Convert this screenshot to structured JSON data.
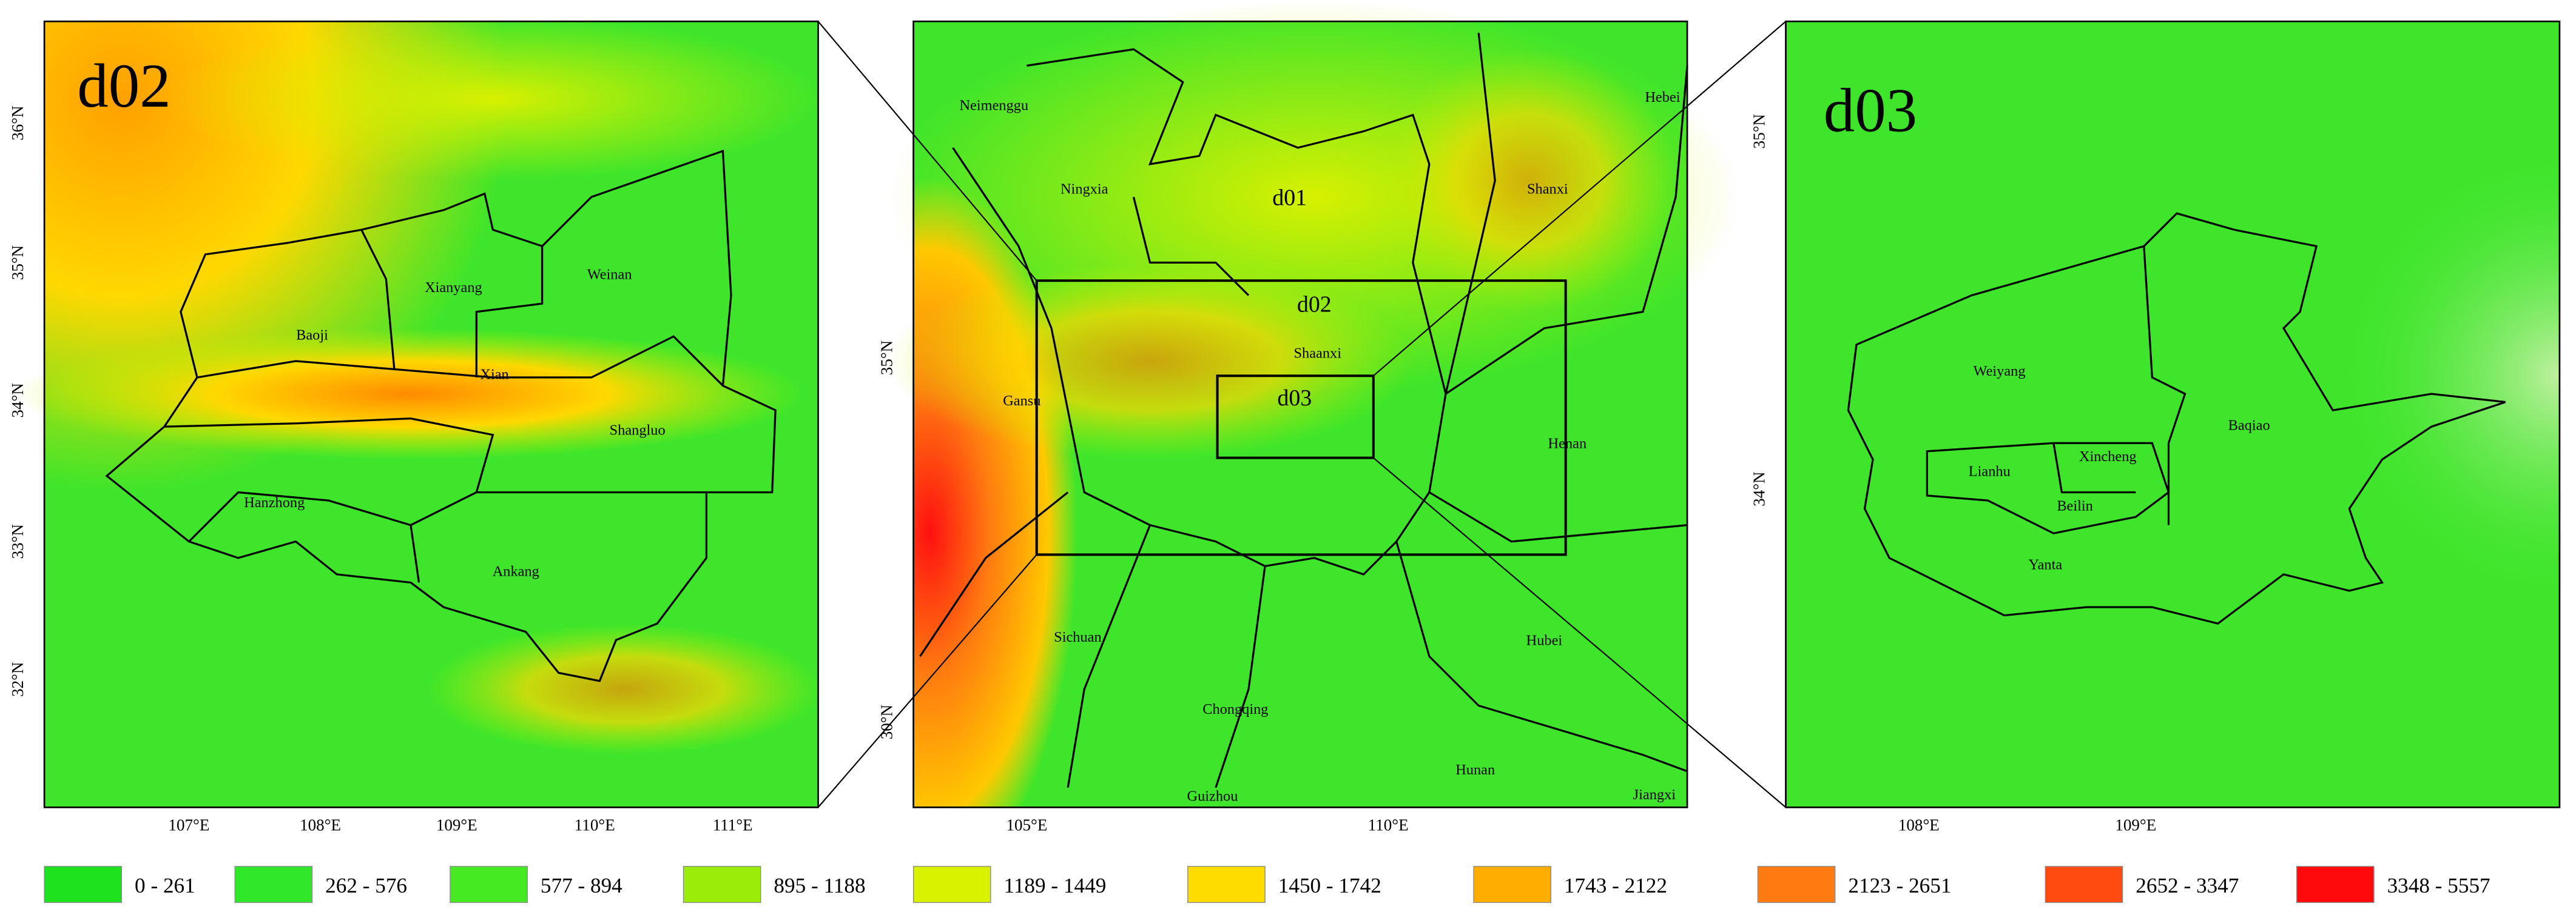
{
  "panels": [
    {
      "label": "d02",
      "x_ticks": [
        "107°E",
        "108°E",
        "109°E",
        "110°E",
        "111°E"
      ],
      "y_ticks": [
        "36°N",
        "35°N",
        "34°N",
        "33°N",
        "32°N"
      ],
      "places": [
        "Xianyang",
        "Weinan",
        "Baoji",
        "Xian",
        "Shangluo",
        "Hanzhong",
        "Ankang"
      ]
    },
    {
      "boxes": [
        "d01",
        "d02",
        "d03"
      ],
      "x_ticks": [
        "105°E",
        "110°E"
      ],
      "y_ticks": [
        "35°N",
        "30°N"
      ],
      "places": [
        "Neimenggu",
        "Hebei",
        "Ningxia",
        "Shanxi",
        "Gansu",
        "Shaanxi",
        "Henan",
        "Sichuan",
        "Hubei",
        "Chongqing",
        "Hunan",
        "Guizhou",
        "Jiangxi"
      ]
    },
    {
      "label": "d03",
      "x_ticks": [
        "108°E",
        "109°E"
      ],
      "y_ticks": [
        "35°N",
        "34°N"
      ],
      "places": [
        "Weiyang",
        "Baqiao",
        "Lianhu",
        "Xincheng",
        "Beilin",
        "Yanta"
      ]
    }
  ],
  "legend": [
    {
      "label": "0 - 261",
      "color": "#1ee21e"
    },
    {
      "label": "262 - 576",
      "color": "#2fe82a"
    },
    {
      "label": "577 - 894",
      "color": "#46ea22"
    },
    {
      "label": "895 - 1188",
      "color": "#9cec0a"
    },
    {
      "label": "1189 - 1449",
      "color": "#d9f200"
    },
    {
      "label": "1450 - 1742",
      "color": "#ffdc00"
    },
    {
      "label": "1743 - 2122",
      "color": "#ffad00"
    },
    {
      "label": "2123 - 2651",
      "color": "#ff7a10"
    },
    {
      "label": "2652 - 3347",
      "color": "#ff4a10"
    },
    {
      "label": "3348 - 5557",
      "color": "#ff0a0a"
    }
  ]
}
